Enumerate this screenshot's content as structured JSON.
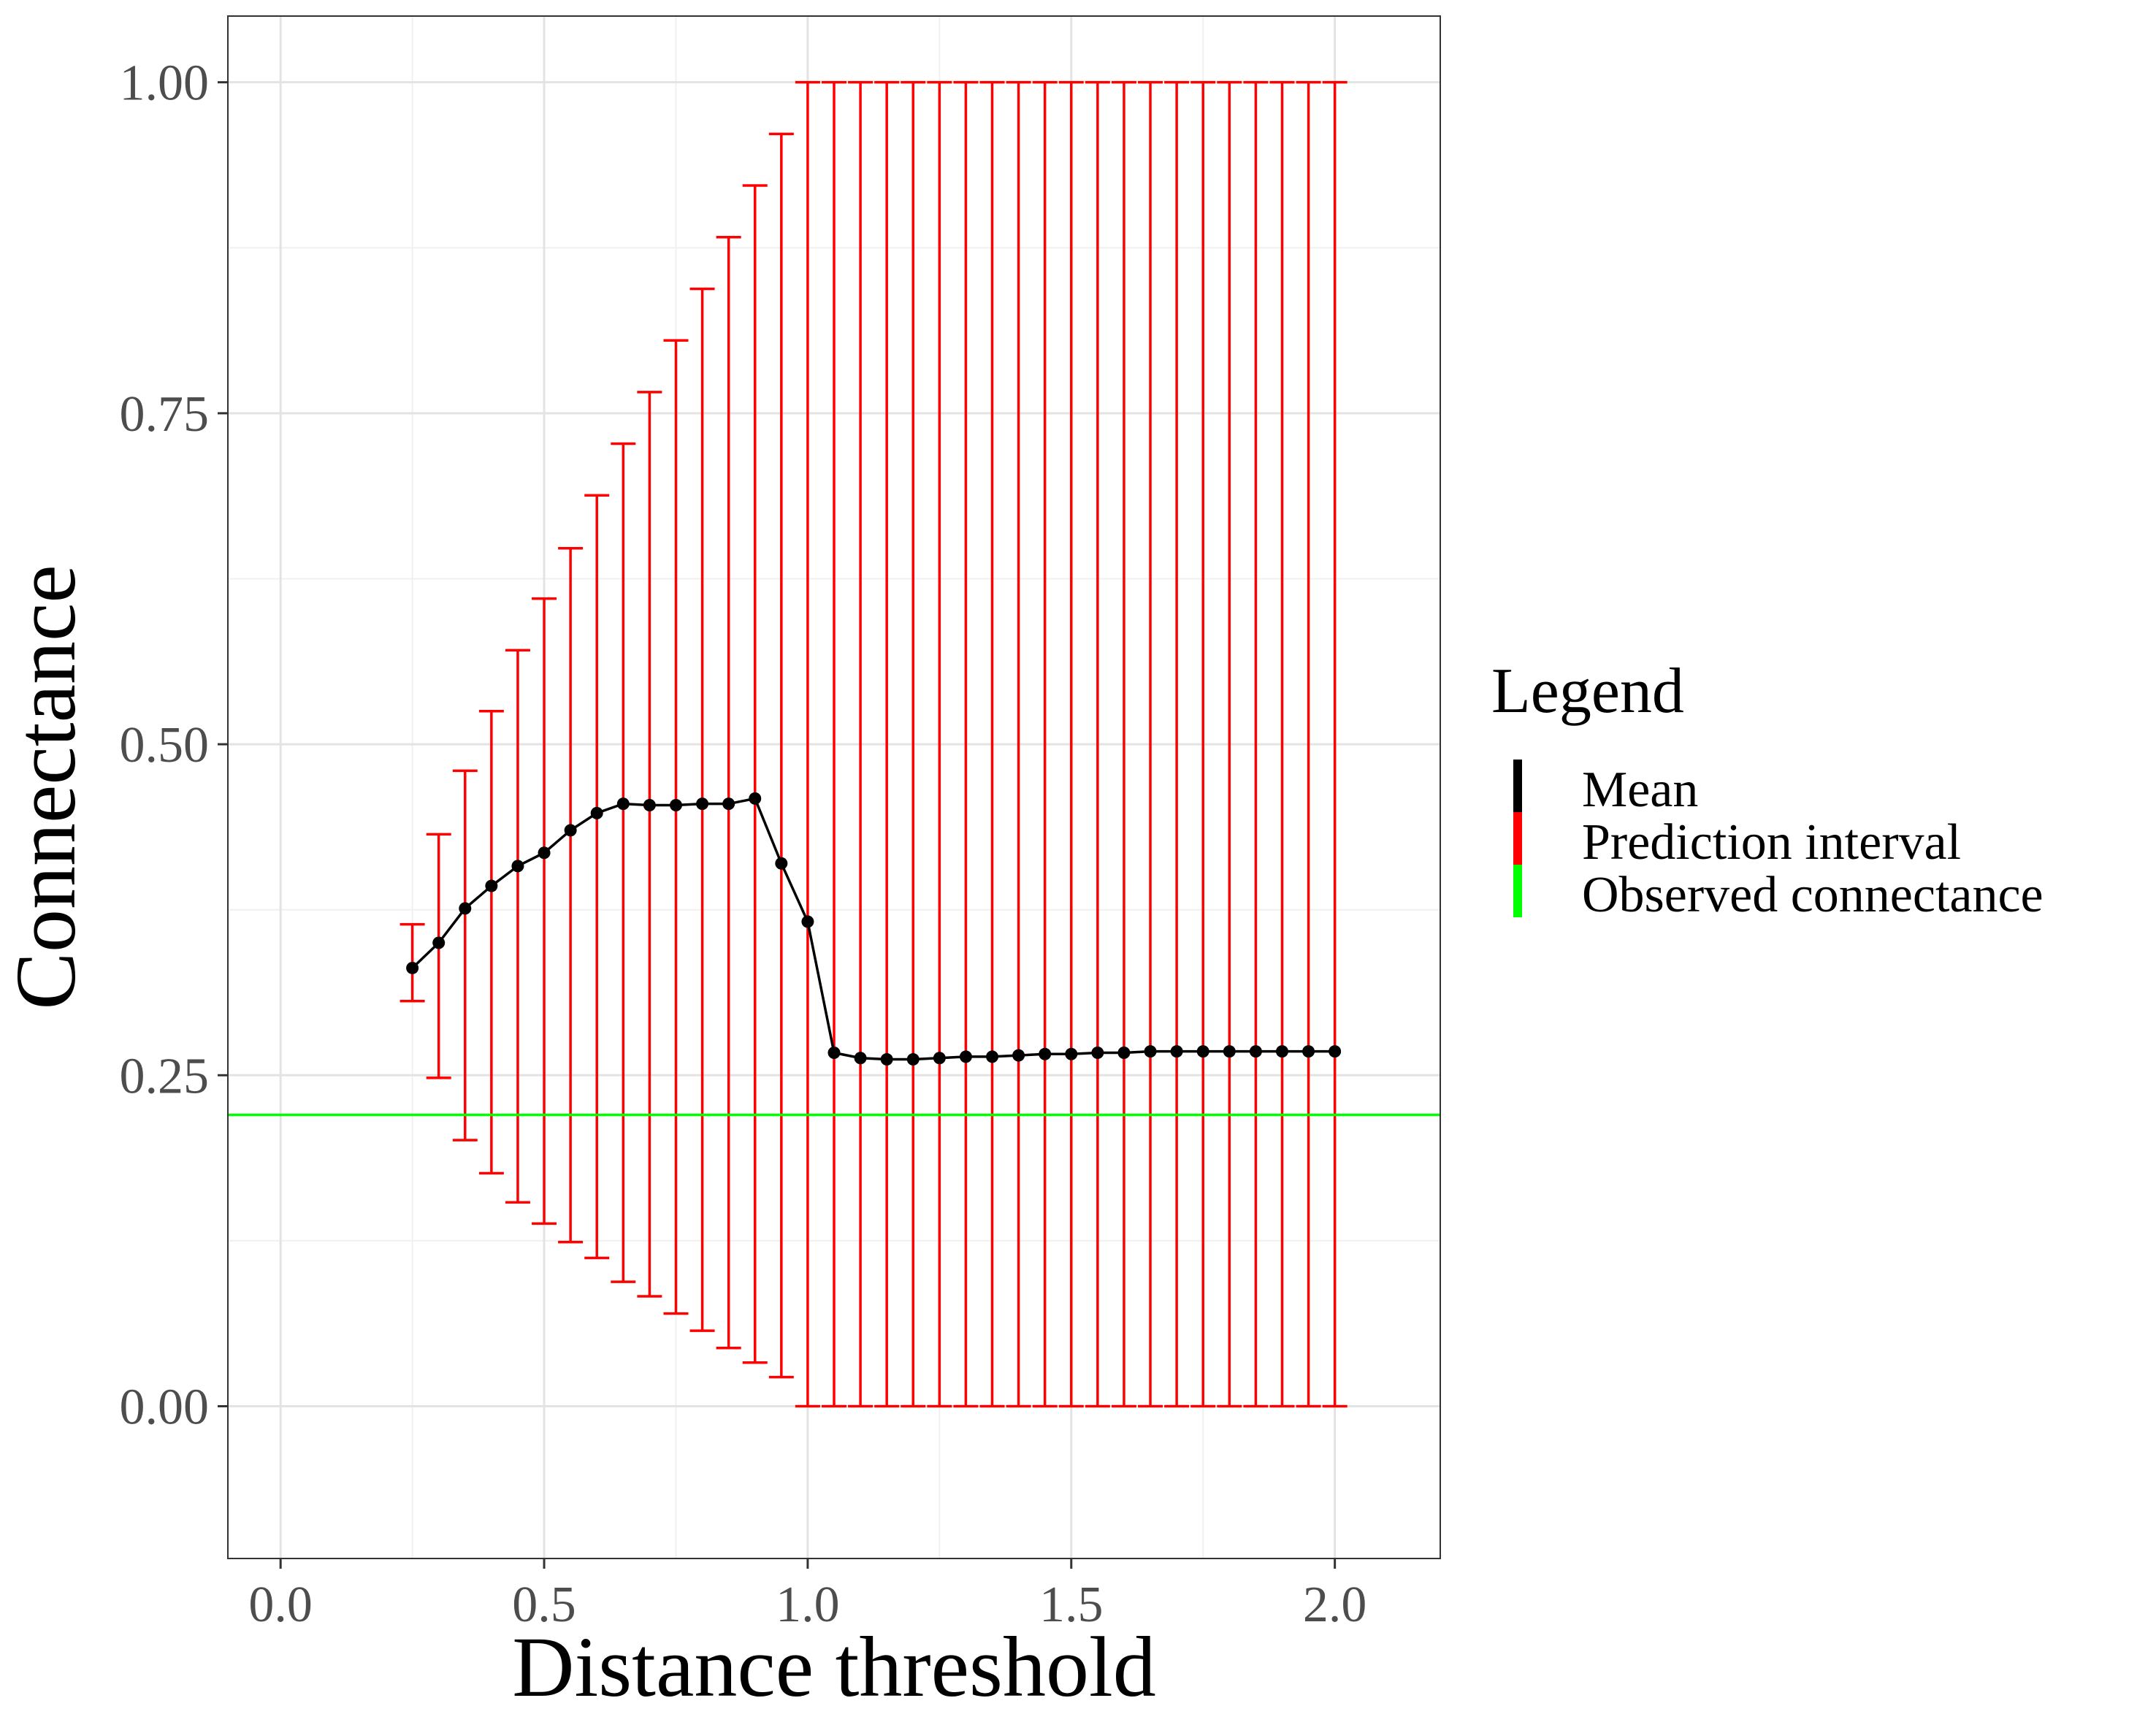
{
  "chart_data": {
    "type": "line",
    "xlabel": "Distance threshold",
    "ylabel": "Connectance",
    "xlim": [
      -0.1,
      2.2
    ],
    "ylim": [
      -0.115,
      1.05
    ],
    "x_ticks": [
      0.0,
      0.5,
      1.0,
      1.5,
      2.0
    ],
    "x_tick_labels": [
      "0.0",
      "0.5",
      "1.0",
      "1.5",
      "2.0"
    ],
    "y_ticks": [
      0.0,
      0.25,
      0.5,
      0.75,
      1.0
    ],
    "y_tick_labels": [
      "0.00",
      "0.25",
      "0.50",
      "0.75",
      "1.00"
    ],
    "grid": true,
    "legend_position": "right",
    "legend": {
      "title": "Legend",
      "items": [
        {
          "label": "Mean",
          "color": "#000000"
        },
        {
          "label": "Prediction interval",
          "color": "#ff0000"
        },
        {
          "label": "Observed connectance",
          "color": "#00ff00"
        }
      ]
    },
    "observed_connectance": 0.22,
    "series": [
      {
        "name": "Mean",
        "color": "#000000",
        "x": [
          0.25,
          0.3,
          0.35,
          0.4,
          0.45,
          0.5,
          0.55,
          0.6,
          0.65,
          0.7,
          0.75,
          0.8,
          0.85,
          0.9,
          0.95,
          1.0,
          1.05,
          1.1,
          1.15,
          1.2,
          1.25,
          1.3,
          1.35,
          1.4,
          1.45,
          1.5,
          1.55,
          1.6,
          1.65,
          1.7,
          1.75,
          1.8,
          1.85,
          1.9,
          1.95,
          2.0
        ],
        "y": [
          0.331,
          0.35,
          0.376,
          0.393,
          0.408,
          0.418,
          0.435,
          0.448,
          0.455,
          0.454,
          0.454,
          0.455,
          0.455,
          0.459,
          0.41,
          0.366,
          0.267,
          0.263,
          0.262,
          0.262,
          0.263,
          0.264,
          0.264,
          0.265,
          0.266,
          0.266,
          0.267,
          0.267,
          0.268,
          0.268,
          0.268,
          0.268,
          0.268,
          0.268,
          0.268,
          0.268
        ]
      },
      {
        "name": "Prediction interval",
        "color": "#ff0000",
        "x": [
          0.25,
          0.3,
          0.35,
          0.4,
          0.45,
          0.5,
          0.55,
          0.6,
          0.65,
          0.7,
          0.75,
          0.8,
          0.85,
          0.9,
          0.95,
          1.0,
          1.05,
          1.1,
          1.15,
          1.2,
          1.25,
          1.3,
          1.35,
          1.4,
          1.45,
          1.5,
          1.55,
          1.6,
          1.65,
          1.7,
          1.75,
          1.8,
          1.85,
          1.9,
          1.95,
          2.0
        ],
        "lower": [
          0.306,
          0.248,
          0.201,
          0.176,
          0.154,
          0.138,
          0.124,
          0.112,
          0.094,
          0.083,
          0.07,
          0.057,
          0.044,
          0.033,
          0.022,
          0.0,
          0.0,
          0.0,
          0.0,
          0.0,
          0.0,
          0.0,
          0.0,
          0.0,
          0.0,
          0.0,
          0.0,
          0.0,
          0.0,
          0.0,
          0.0,
          0.0,
          0.0,
          0.0,
          0.0,
          0.0
        ],
        "upper": [
          0.364,
          0.432,
          0.48,
          0.525,
          0.571,
          0.61,
          0.648,
          0.688,
          0.727,
          0.766,
          0.805,
          0.844,
          0.883,
          0.922,
          0.961,
          1.0,
          1.0,
          1.0,
          1.0,
          1.0,
          1.0,
          1.0,
          1.0,
          1.0,
          1.0,
          1.0,
          1.0,
          1.0,
          1.0,
          1.0,
          1.0,
          1.0,
          1.0,
          1.0,
          1.0,
          1.0
        ]
      }
    ]
  }
}
